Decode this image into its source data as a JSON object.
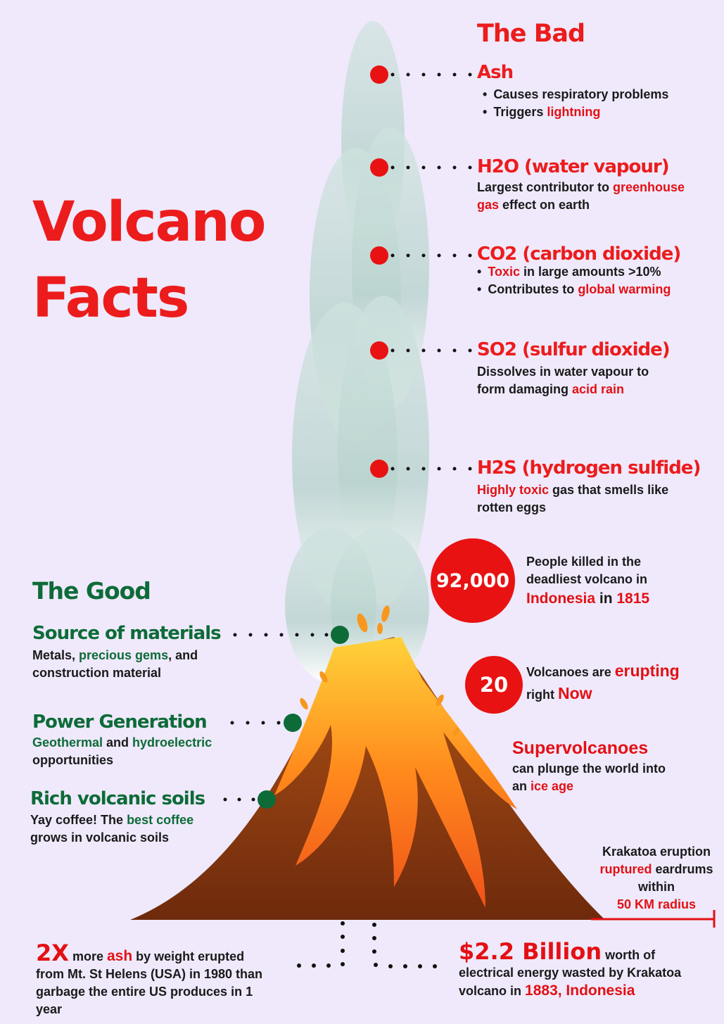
{
  "title_line1": "Volcano",
  "title_line2": "Facts",
  "bad": {
    "heading": "The Bad",
    "ash": {
      "label": "Ash",
      "bullet1": "Causes respiratory problems",
      "bullet2_pre": "Triggers ",
      "bullet2_hl": "lightning"
    },
    "h2o": {
      "label": "H2O (water vapour)",
      "line1_pre": "Largest contributor to ",
      "line1_hl": "greenhouse",
      "line2_hl": "gas",
      "line2_post": " effect on earth"
    },
    "co2": {
      "label": "CO2 (carbon dioxide)",
      "bullet1_hl": "Toxic",
      "bullet1_post": " in large amounts >10%",
      "bullet2_pre": "Contributes to ",
      "bullet2_hl": "global warming"
    },
    "so2": {
      "label": "SO2 (sulfur dioxide)",
      "line1": "Dissolves in water vapour to",
      "line2_pre": "form damaging ",
      "line2_hl": "acid rain"
    },
    "h2s": {
      "label": "H2S (hydrogen sulfide)",
      "line1_hl": "Highly toxic",
      "line1_post": " gas that smells like",
      "line2": "rotten eggs"
    }
  },
  "good": {
    "heading": "The Good",
    "materials": {
      "label": "Source of materials",
      "line1_pre": "Metals, ",
      "line1_hl": "precious gems",
      "line1_post": ", and",
      "line2": "construction material"
    },
    "power": {
      "label": "Power Generation",
      "line1_hl1": "Geothermal",
      "line1_mid": " and ",
      "line1_hl2": "hydroelectric",
      "line2": "opportunities"
    },
    "soils": {
      "label": "Rich volcanic soils",
      "line1_pre": "Yay coffee! The ",
      "line1_hl": "best coffee",
      "line2": "grows in volcanic soils"
    }
  },
  "stats": {
    "killed": {
      "number": "92,000",
      "line1": "People killed in the",
      "line2": "deadliest volcano in",
      "line3_hl1": "Indonesia",
      "line3_mid": " in ",
      "line3_hl2": "1815"
    },
    "erupting": {
      "number": "20",
      "line1_pre": "Volcanoes are ",
      "line1_hl": "erupting",
      "line2_pre": "right ",
      "line2_hl": "Now"
    },
    "super": {
      "heading": "Supervolcanoes",
      "line1": "can plunge the world into",
      "line2_pre": "an ",
      "line2_hl": "ice age"
    },
    "krakatoa_ear": {
      "line1": "Krakatoa eruption",
      "line2_hl": "ruptured",
      "line2_post": " eardrums",
      "line3": "within",
      "line4_hl": "50 KM radius"
    },
    "ash2x": {
      "big": "2X",
      "line1_mid": " more ",
      "line1_hl": "ash",
      "line1_post": " by weight  erupted",
      "line2": "from Mt. St Helens (USA) in 1980 than",
      "line3": "garbage the entire US produces in 1",
      "line4": "year"
    },
    "energy": {
      "big": "$2.2 Billion",
      "line1_post": "  worth of",
      "line2": "electrical energy wasted  by Krakatoa",
      "line3_pre": "volcano in ",
      "line3_hl": "1883, Indonesia"
    }
  },
  "colors": {
    "background": "#efe9fb",
    "bad_red": "#ec1c1c",
    "good_green": "#0d6b38",
    "lava": "#f7971e",
    "mountain": "#8b3a10"
  }
}
